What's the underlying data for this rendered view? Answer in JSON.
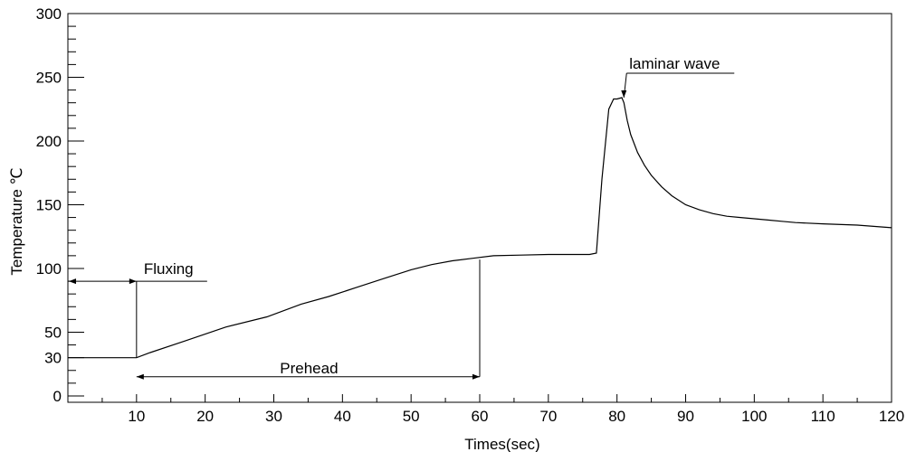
{
  "chart_data": {
    "type": "line",
    "title": "",
    "xlabel": "Times(sec)",
    "ylabel": "Temperature ℃",
    "xlim": [
      0,
      120
    ],
    "ylim": [
      -5,
      300
    ],
    "x_ticks": [
      10,
      20,
      30,
      40,
      50,
      60,
      70,
      80,
      90,
      100,
      110,
      120
    ],
    "x_minor_step": 5,
    "y_ticks": [
      0,
      30,
      50,
      100,
      150,
      200,
      250,
      300
    ],
    "y_minor_step": 10,
    "grid": false,
    "series": [
      {
        "x": [
          0,
          10,
          12,
          17,
          23,
          29,
          34,
          38,
          42,
          46,
          50,
          53,
          56,
          59,
          62,
          66,
          70,
          73,
          76,
          77,
          77.8,
          78.8,
          79.5,
          80,
          80.7,
          81,
          81.5,
          82,
          83,
          84,
          85,
          86.5,
          88,
          90,
          92,
          94,
          96,
          98,
          100,
          102,
          104,
          106,
          110,
          115,
          120
        ],
        "y": [
          30,
          30,
          34,
          43,
          54,
          62,
          72,
          78,
          85,
          92,
          99,
          103,
          106,
          108,
          110,
          110.5,
          111,
          111,
          111,
          112,
          170,
          225,
          233,
          233,
          234,
          230,
          216,
          205,
          191,
          181,
          173,
          164,
          157,
          150,
          146,
          143,
          141,
          140,
          139,
          138,
          137,
          136,
          135,
          134,
          132
        ]
      }
    ],
    "annotations": [
      {
        "text": "Fluxing",
        "from_x": 0,
        "to_x": 10,
        "y": 90
      },
      {
        "text": "Prehead",
        "from_x": 10,
        "to_x": 60,
        "y": 15
      },
      {
        "text": "laminar wave",
        "x": 81,
        "y": 234
      }
    ]
  }
}
